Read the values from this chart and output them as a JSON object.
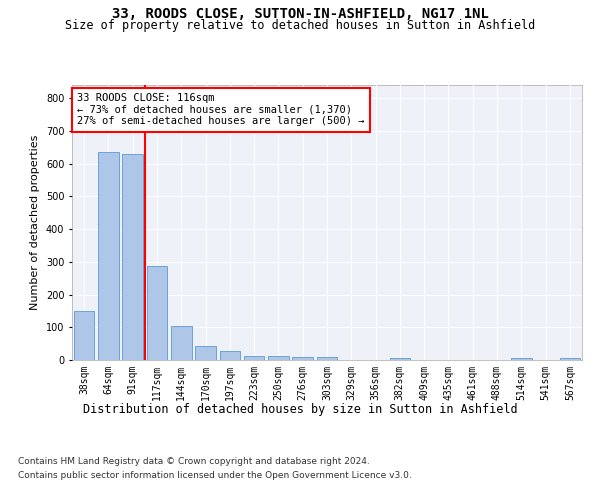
{
  "title": "33, ROODS CLOSE, SUTTON-IN-ASHFIELD, NG17 1NL",
  "subtitle": "Size of property relative to detached houses in Sutton in Ashfield",
  "xlabel": "Distribution of detached houses by size in Sutton in Ashfield",
  "ylabel": "Number of detached properties",
  "categories": [
    "38sqm",
    "64sqm",
    "91sqm",
    "117sqm",
    "144sqm",
    "170sqm",
    "197sqm",
    "223sqm",
    "250sqm",
    "276sqm",
    "303sqm",
    "329sqm",
    "356sqm",
    "382sqm",
    "409sqm",
    "435sqm",
    "461sqm",
    "488sqm",
    "514sqm",
    "541sqm",
    "567sqm"
  ],
  "values": [
    150,
    635,
    628,
    288,
    103,
    42,
    29,
    11,
    11,
    10,
    10,
    0,
    0,
    7,
    0,
    0,
    0,
    0,
    7,
    0,
    7
  ],
  "bar_color": "#aec6e8",
  "bar_edge_color": "#5b9bd5",
  "annotation_text": "33 ROODS CLOSE: 116sqm\n← 73% of detached houses are smaller (1,370)\n27% of semi-detached houses are larger (500) →",
  "annotation_box_color": "white",
  "annotation_box_edge_color": "red",
  "vline_color": "red",
  "ylim": [
    0,
    840
  ],
  "yticks": [
    0,
    100,
    200,
    300,
    400,
    500,
    600,
    700,
    800
  ],
  "footer_line1": "Contains HM Land Registry data © Crown copyright and database right 2024.",
  "footer_line2": "Contains public sector information licensed under the Open Government Licence v3.0.",
  "bg_color": "#eef2f8",
  "grid_color": "white",
  "title_fontsize": 10,
  "subtitle_fontsize": 8.5,
  "xlabel_fontsize": 8.5,
  "ylabel_fontsize": 8,
  "tick_fontsize": 7,
  "annotation_fontsize": 7.5,
  "footer_fontsize": 6.5
}
